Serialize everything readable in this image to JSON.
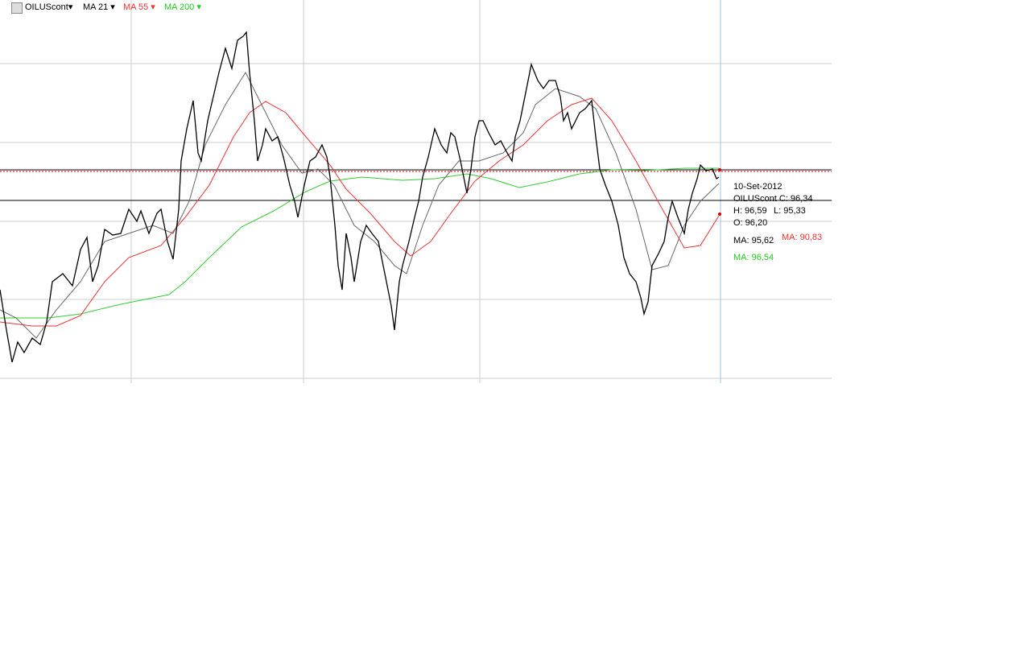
{
  "toolbar": {
    "symbol": "OILUScont",
    "indicators": [
      "MA 21",
      "MA 55",
      "MA 200"
    ]
  },
  "info_panel": {
    "date": "10-Set-2012",
    "close": "OILUScont  C: 96,34",
    "high": "H: 96,59",
    "low": "L: 95,33",
    "open": "O: 96,20",
    "ma_21": "MA: 95,62",
    "ma_55": "MA: 90,83",
    "ma_200": "MA: 96,54"
  }
}
